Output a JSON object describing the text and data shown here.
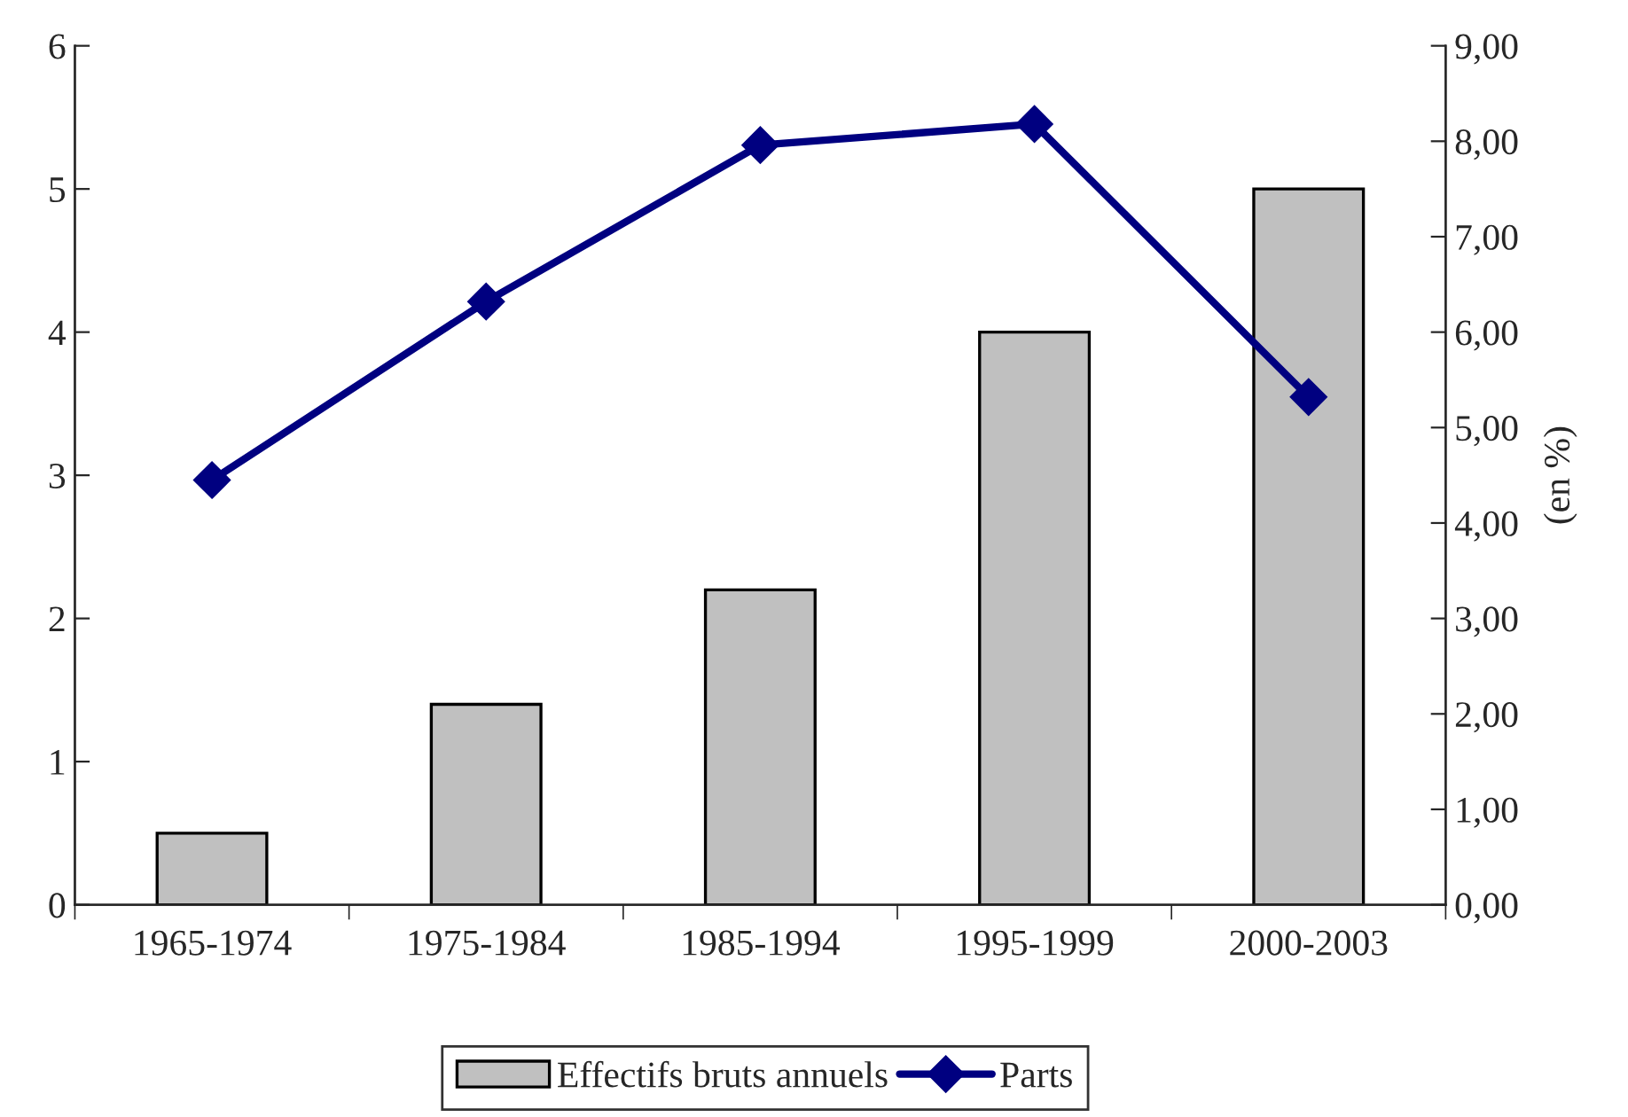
{
  "chart_data": {
    "type": "bar",
    "y2label": "(en %)",
    "categories": [
      "1965-1974",
      "1975-1984",
      "1985-1994",
      "1995-1999",
      "2000-2003"
    ],
    "series": [
      {
        "name": "Effectifs bruts annuels",
        "color": "#c0c0c0",
        "values": [
          0.5,
          1.4,
          2.2,
          4.0,
          5.0
        ]
      },
      {
        "name": "Parts",
        "type": "line",
        "axis": "y2",
        "color": "#000080",
        "marker": "diamond",
        "values": [
          4.45,
          6.32,
          7.96,
          8.18,
          5.32
        ]
      }
    ],
    "ylim": [
      0,
      6
    ],
    "yticks": [
      0,
      1,
      2,
      3,
      4,
      5,
      6
    ],
    "y2lim": [
      0,
      9
    ],
    "y2ticks": [
      {
        "value": 0,
        "label": "0,00"
      },
      {
        "value": 1,
        "label": "1,00"
      },
      {
        "value": 2,
        "label": "2,00"
      },
      {
        "value": 3,
        "label": "3,00"
      },
      {
        "value": 4,
        "label": "4,00"
      },
      {
        "value": 5,
        "label": "5,00"
      },
      {
        "value": 6,
        "label": "6,00"
      },
      {
        "value": 7,
        "label": "7,00"
      },
      {
        "value": 8,
        "label": "8,00"
      },
      {
        "value": 9,
        "label": "9,00"
      }
    ],
    "grid": false,
    "legend": "bottom"
  }
}
